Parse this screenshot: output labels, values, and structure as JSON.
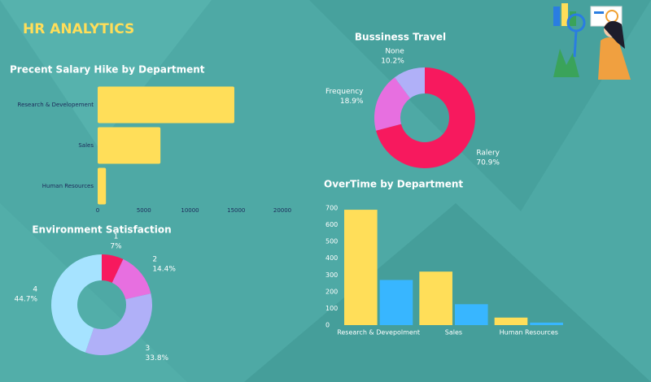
{
  "header": {
    "title": "HR ANALYTICS"
  },
  "chart_data": [
    {
      "type": "hbar",
      "title": "Precent Salary Hike by Department",
      "categories": [
        "Research & Developement",
        "Sales",
        "Human Resources"
      ],
      "values": [
        14800,
        6800,
        900
      ],
      "color": "#ffde59",
      "xlim": [
        0,
        20000
      ],
      "xticks": [
        0,
        5000,
        10000,
        15000,
        20000
      ]
    },
    {
      "type": "pie",
      "title": "Bussiness Travel",
      "categories": [
        "Ralery",
        "Frequency",
        "None"
      ],
      "values": [
        70.9,
        18.9,
        10.2
      ],
      "value_labels": [
        "70.9%",
        "18.9%",
        "10.2%"
      ],
      "colors": [
        "#f7195e",
        "#e76fe0",
        "#b0b0f8"
      ]
    },
    {
      "type": "pie",
      "title": "Environment Satisfaction",
      "categories": [
        "1",
        "2",
        "3",
        "4"
      ],
      "values": [
        7,
        14.4,
        33.8,
        44.7
      ],
      "value_labels": [
        "7%",
        "14.4%",
        "33.8%",
        "44.7%"
      ],
      "colors": [
        "#f7195e",
        "#e76fe0",
        "#b0b0f8",
        "#a6e3ff"
      ]
    },
    {
      "type": "groupbar",
      "title": "OverTime by Department",
      "categories": [
        "Research & Devepolment",
        "Sales",
        "Human Resources"
      ],
      "series": [
        {
          "color": "#ffde59",
          "values": [
            690,
            320,
            45
          ]
        },
        {
          "color": "#38b6ff",
          "values": [
            270,
            125,
            15
          ]
        }
      ],
      "ylim": [
        0,
        700
      ],
      "yticks": [
        0,
        100,
        200,
        300,
        400,
        500,
        600,
        700
      ]
    }
  ]
}
